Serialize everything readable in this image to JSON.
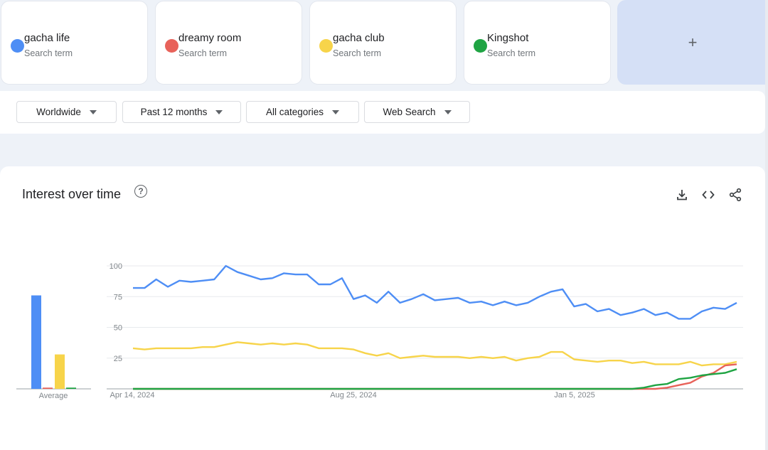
{
  "terms": [
    {
      "name": "gacha life",
      "sub": "Search term",
      "color": "#4e8ef5"
    },
    {
      "name": "dreamy room",
      "sub": "Search term",
      "color": "#e8625a"
    },
    {
      "name": "gacha club",
      "sub": "Search term",
      "color": "#f7d44a"
    },
    {
      "name": "Kingshot",
      "sub": "Search term",
      "color": "#1fa443"
    }
  ],
  "add_label": "+",
  "filters": {
    "region": "Worldwide",
    "time": "Past 12 months",
    "category": "All categories",
    "search_type": "Web Search"
  },
  "chart_panel": {
    "title": "Interest over time",
    "help_icon": "help-circle-icon",
    "tools": [
      "download-icon",
      "embed-code-icon",
      "share-icon"
    ]
  },
  "chart_data": [
    {
      "type": "bar",
      "categories": [
        "gacha life",
        "dreamy room",
        "gacha club",
        "Kingshot"
      ],
      "values": [
        76,
        1,
        28,
        1
      ],
      "xlabel": "Average",
      "ylim": [
        0,
        100
      ]
    },
    {
      "type": "line",
      "x_tick_labels": [
        "Apr 14, 2024",
        "Aug 25, 2024",
        "Jan 5, 2025"
      ],
      "y_ticks": [
        25,
        50,
        75,
        100
      ],
      "ylim": [
        0,
        100
      ],
      "grid": true,
      "series": [
        {
          "name": "gacha life",
          "color": "#4e8ef5",
          "values": [
            82,
            82,
            89,
            83,
            88,
            87,
            88,
            89,
            100,
            95,
            92,
            89,
            90,
            94,
            93,
            93,
            85,
            85,
            90,
            73,
            76,
            70,
            79,
            70,
            73,
            77,
            72,
            73,
            74,
            70,
            71,
            68,
            71,
            68,
            70,
            75,
            79,
            81,
            67,
            69,
            63,
            65,
            60,
            62,
            65,
            60,
            62,
            57,
            57,
            63,
            66,
            65,
            70
          ]
        },
        {
          "name": "gacha club",
          "color": "#f7d44a",
          "values": [
            33,
            32,
            33,
            33,
            33,
            33,
            34,
            34,
            36,
            38,
            37,
            36,
            37,
            36,
            37,
            36,
            33,
            33,
            33,
            32,
            29,
            27,
            29,
            25,
            26,
            27,
            26,
            26,
            26,
            25,
            26,
            25,
            26,
            23,
            25,
            26,
            30,
            30,
            24,
            23,
            22,
            23,
            23,
            21,
            22,
            20,
            20,
            20,
            22,
            19,
            20,
            20,
            22
          ]
        },
        {
          "name": "dreamy room",
          "color": "#e8625a",
          "values": [
            0,
            0,
            0,
            0,
            0,
            0,
            0,
            0,
            0,
            0,
            0,
            0,
            0,
            0,
            0,
            0,
            0,
            0,
            0,
            0,
            0,
            0,
            0,
            0,
            0,
            0,
            0,
            0,
            0,
            0,
            0,
            0,
            0,
            0,
            0,
            0,
            0,
            0,
            0,
            0,
            0,
            0,
            0,
            0,
            0,
            0,
            1,
            3,
            5,
            10,
            13,
            19,
            20
          ]
        },
        {
          "name": "Kingshot",
          "color": "#1fa443",
          "values": [
            0,
            0,
            0,
            0,
            0,
            0,
            0,
            0,
            0,
            0,
            0,
            0,
            0,
            0,
            0,
            0,
            0,
            0,
            0,
            0,
            0,
            0,
            0,
            0,
            0,
            0,
            0,
            0,
            0,
            0,
            0,
            0,
            0,
            0,
            0,
            0,
            0,
            0,
            0,
            0,
            0,
            0,
            0,
            0,
            1,
            3,
            4,
            8,
            9,
            11,
            12,
            13,
            16
          ]
        }
      ]
    }
  ]
}
